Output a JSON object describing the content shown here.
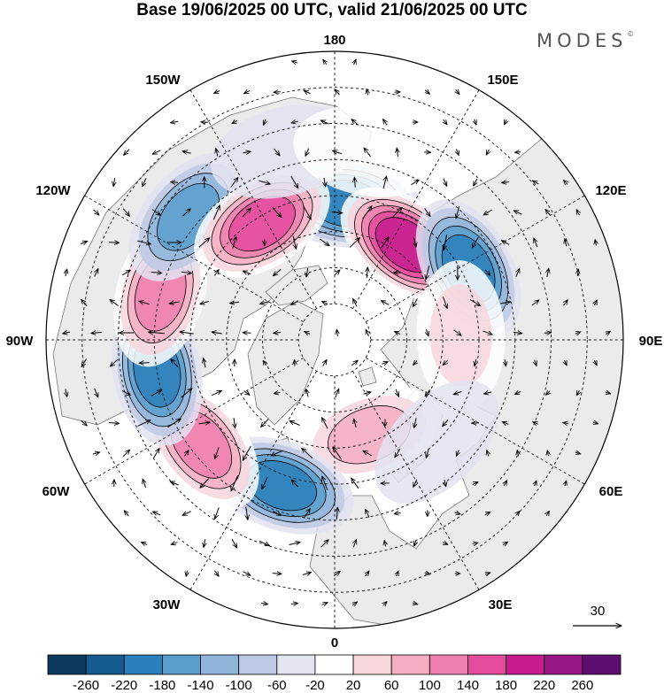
{
  "title": "Base 19/06/2025 00 UTC, valid 21/06/2025 00 UTC",
  "brand": "MODES",
  "brand_mark": "©",
  "longitude_labels": {
    "lon_180": "180",
    "lon_150e": "150E",
    "lon_120e": "120E",
    "lon_90e": "90E",
    "lon_60e": "60E",
    "lon_30e": "30E",
    "lon_0": "0",
    "lon_30w": "30W",
    "lon_60w": "60W",
    "lon_90w": "90W",
    "lon_120w": "120W",
    "lon_150w": "150W"
  },
  "vector_reference": {
    "value": "30"
  },
  "colorbar": {
    "colors": [
      "#0b3a5c",
      "#145c8f",
      "#2b7fba",
      "#5a9fcc",
      "#8fb5db",
      "#bdc9e4",
      "#e3e3f1",
      "#ffffff",
      "#f7d6dc",
      "#f4aec1",
      "#ef7fae",
      "#e44b9d",
      "#c61d8e",
      "#991687",
      "#5e0e70"
    ],
    "tick_labels": [
      "-260",
      "-220",
      "-180",
      "-140",
      "-100",
      "-60",
      "-20",
      "20",
      "60",
      "100",
      "140",
      "180",
      "220",
      "260"
    ]
  },
  "colors": {
    "land": "#ebebeb",
    "coastline": "#777777",
    "grid": "#222222"
  },
  "anomaly_centers": [
    {
      "lon": 175,
      "lat": 52,
      "value": -200
    },
    {
      "lon": 143,
      "lat": 57,
      "value": 230
    },
    {
      "lon": 118,
      "lat": 48,
      "value": -180
    },
    {
      "lon": 92,
      "lat": 55,
      "value": 80
    },
    {
      "lon": 20,
      "lat": 62,
      "value": 120
    },
    {
      "lon": -20,
      "lat": 47,
      "value": -190
    },
    {
      "lon": -52,
      "lat": 43,
      "value": 160
    },
    {
      "lon": -80,
      "lat": 40,
      "value": -180
    },
    {
      "lon": -105,
      "lat": 40,
      "value": 170
    },
    {
      "lon": -130,
      "lat": 37,
      "value": -160
    },
    {
      "lon": -148,
      "lat": 52,
      "value": 200
    },
    {
      "lon": 45,
      "lat": 50,
      "value": -50
    },
    {
      "lon": -165,
      "lat": 36,
      "value": -50
    },
    {
      "lon": 170,
      "lat": 37,
      "value": 50
    }
  ]
}
